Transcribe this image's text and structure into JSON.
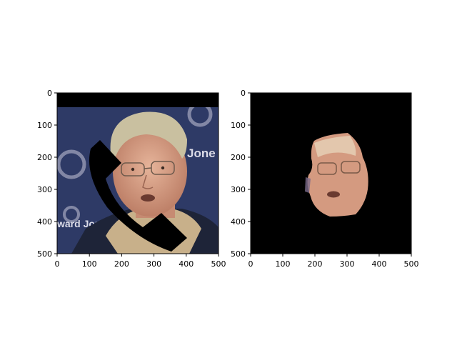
{
  "chart_data": [
    {
      "type": "image",
      "panel": "left",
      "content": "photo of a man's face with glasses, partially occluded by a black diagonal mask and a black band across the top",
      "xlim": [
        0,
        500
      ],
      "ylim": [
        500,
        0
      ],
      "xticks": [
        0,
        100,
        200,
        300,
        400,
        500
      ],
      "yticks": [
        0,
        100,
        200,
        300,
        400,
        500
      ],
      "background_text": [
        "Jone",
        "ward Jon"
      ],
      "colors": {
        "backdrop": "#2e3a66",
        "mask": "#000000",
        "hair": "#c9c0a0",
        "skin": "#d9a48a",
        "jacket": "#1e2438",
        "collar": "#c8b08a"
      }
    },
    {
      "type": "image",
      "panel": "right",
      "content": "segmented face region on black background",
      "xlim": [
        0,
        500
      ],
      "ylim": [
        500,
        0
      ],
      "xticks": [
        0,
        100,
        200,
        300,
        400,
        500
      ],
      "yticks": [
        0,
        100,
        200,
        300,
        400,
        500
      ],
      "colors": {
        "background": "#000000",
        "skin": "#d49a80"
      }
    }
  ]
}
